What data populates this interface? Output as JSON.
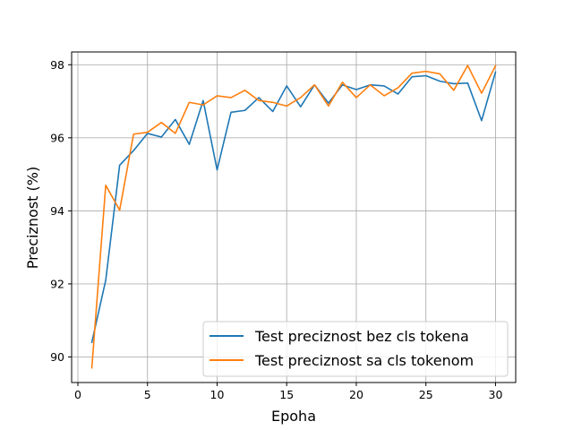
{
  "chart_data": {
    "type": "line",
    "title": "",
    "xlabel": "Epoha",
    "ylabel": "Preciznost (%)",
    "xlim": [
      -0.45,
      31.45
    ],
    "ylim": [
      89.3,
      98.35
    ],
    "xticks": [
      0,
      5,
      10,
      15,
      20,
      25,
      30
    ],
    "yticks": [
      90,
      92,
      94,
      96,
      98
    ],
    "grid": true,
    "legend_position": "lower-right",
    "x": [
      1,
      2,
      3,
      4,
      5,
      6,
      7,
      8,
      9,
      10,
      11,
      12,
      13,
      14,
      15,
      16,
      17,
      18,
      19,
      20,
      21,
      22,
      23,
      24,
      25,
      26,
      27,
      28,
      29,
      30
    ],
    "series": [
      {
        "name": "Test preciznost bez cls tokena",
        "color": "#1f77b4",
        "values": [
          90.4,
          92.1,
          95.25,
          95.65,
          96.12,
          96.02,
          96.5,
          95.82,
          97.02,
          95.12,
          96.7,
          96.75,
          97.1,
          96.72,
          97.42,
          96.85,
          97.45,
          96.95,
          97.45,
          97.32,
          97.45,
          97.42,
          97.2,
          97.67,
          97.7,
          97.55,
          97.48,
          97.5,
          96.47,
          97.8
        ]
      },
      {
        "name": "Test preciznost sa cls tokenom",
        "color": "#ff7f0e",
        "values": [
          89.7,
          94.7,
          94.02,
          96.1,
          96.15,
          96.42,
          96.12,
          96.97,
          96.9,
          97.15,
          97.1,
          97.3,
          97.02,
          96.97,
          96.87,
          97.1,
          97.45,
          96.87,
          97.52,
          97.1,
          97.45,
          97.15,
          97.37,
          97.77,
          97.82,
          97.75,
          97.3,
          97.98,
          97.22,
          97.97
        ]
      }
    ]
  }
}
